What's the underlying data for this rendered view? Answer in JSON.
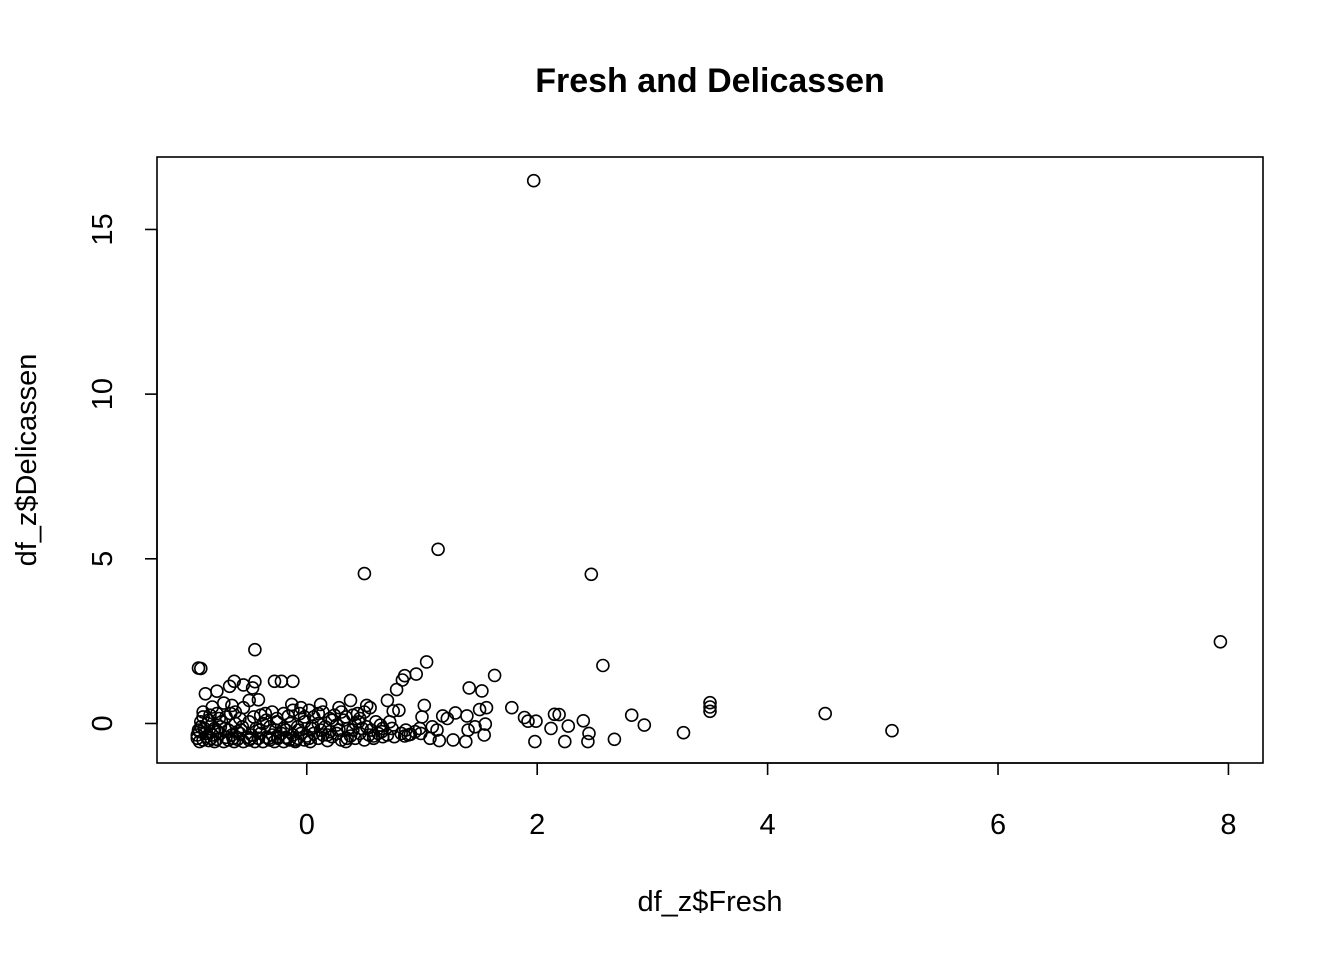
{
  "chart_data": {
    "type": "scatter",
    "title": "Fresh and Delicassen",
    "xlabel": "df_z$Fresh",
    "ylabel": "df_z$Delicassen",
    "xlim": [
      -1.3,
      8.3
    ],
    "ylim": [
      -1.2,
      17.2
    ],
    "xticks": [
      0,
      2,
      4,
      6,
      8
    ],
    "yticks": [
      0,
      5,
      10,
      15
    ],
    "grid": false,
    "legend": "none",
    "points": [
      [
        1.97,
        16.48
      ],
      [
        1.14,
        5.29
      ],
      [
        0.5,
        4.55
      ],
      [
        2.47,
        4.53
      ],
      [
        7.93,
        2.48
      ],
      [
        -0.45,
        2.24
      ],
      [
        -0.94,
        1.68
      ],
      [
        -0.92,
        1.67
      ],
      [
        1.04,
        1.87
      ],
      [
        2.57,
        1.76
      ],
      [
        1.63,
        1.46
      ],
      [
        0.85,
        1.45
      ],
      [
        0.83,
        1.32
      ],
      [
        -0.63,
        1.28
      ],
      [
        -0.45,
        1.27
      ],
      [
        -0.28,
        1.28
      ],
      [
        -0.22,
        1.28
      ],
      [
        -0.12,
        1.28
      ],
      [
        -0.67,
        1.13
      ],
      [
        -0.55,
        1.17
      ],
      [
        -0.47,
        1.08
      ],
      [
        -0.78,
        0.98
      ],
      [
        -0.88,
        0.9
      ],
      [
        0.78,
        1.03
      ],
      [
        0.95,
        1.5
      ],
      [
        1.41,
        1.08
      ],
      [
        1.52,
        0.99
      ],
      [
        3.5,
        0.63
      ],
      [
        3.5,
        0.5
      ],
      [
        3.5,
        0.37
      ],
      [
        4.5,
        0.3
      ],
      [
        5.08,
        -0.22
      ],
      [
        3.27,
        -0.28
      ],
      [
        2.93,
        -0.05
      ],
      [
        2.82,
        0.25
      ],
      [
        2.67,
        -0.48
      ],
      [
        2.45,
        -0.3
      ],
      [
        2.44,
        -0.55
      ],
      [
        2.4,
        0.08
      ],
      [
        2.27,
        -0.08
      ],
      [
        2.24,
        -0.55
      ],
      [
        2.19,
        0.27
      ],
      [
        2.15,
        0.28
      ],
      [
        2.12,
        -0.15
      ],
      [
        1.99,
        0.07
      ],
      [
        1.98,
        -0.55
      ],
      [
        1.92,
        0.07
      ],
      [
        1.89,
        0.18
      ],
      [
        1.78,
        0.48
      ],
      [
        1.56,
        0.48
      ],
      [
        1.55,
        -0.02
      ],
      [
        1.54,
        -0.35
      ],
      [
        1.5,
        0.42
      ],
      [
        1.46,
        -0.1
      ],
      [
        1.4,
        -0.2
      ],
      [
        1.39,
        0.23
      ],
      [
        1.38,
        -0.55
      ],
      [
        1.29,
        0.32
      ],
      [
        1.27,
        -0.5
      ],
      [
        1.22,
        0.15
      ],
      [
        1.18,
        0.23
      ],
      [
        1.15,
        -0.52
      ],
      [
        1.13,
        -0.2
      ],
      [
        1.09,
        -0.1
      ],
      [
        1.07,
        -0.45
      ],
      [
        1.02,
        0.55
      ],
      [
        1.0,
        0.2
      ],
      [
        0.99,
        -0.3
      ],
      [
        0.9,
        -0.33
      ],
      [
        0.85,
        -0.38
      ],
      [
        0.8,
        0.4
      ],
      [
        0.75,
        0.38
      ],
      [
        0.7,
        0.7
      ],
      [
        0.72,
        0.05
      ],
      [
        0.65,
        -0.25
      ],
      [
        0.58,
        -0.38
      ],
      [
        0.55,
        0.48
      ],
      [
        0.52,
        0.55
      ],
      [
        0.5,
        0.35
      ],
      [
        0.45,
        0.05
      ],
      [
        0.4,
        0.25
      ],
      [
        0.38,
        0.7
      ],
      [
        0.35,
        -0.45
      ],
      [
        0.3,
        0.35
      ],
      [
        0.28,
        0.48
      ],
      [
        0.22,
        0.1
      ],
      [
        0.18,
        -0.35
      ],
      [
        0.12,
        0.58
      ],
      [
        0.1,
        0.3
      ],
      [
        0.05,
        -0.08
      ],
      [
        0.02,
        0.4
      ],
      [
        -0.02,
        0.2
      ],
      [
        -0.05,
        0.48
      ],
      [
        -0.1,
        -0.5
      ],
      [
        -0.12,
        0.4
      ],
      [
        -0.13,
        0.58
      ],
      [
        -0.18,
        -0.2
      ],
      [
        -0.2,
        0.3
      ],
      [
        -0.25,
        -0.4
      ],
      [
        -0.3,
        0.35
      ],
      [
        -0.35,
        0.1
      ],
      [
        -0.4,
        0.25
      ],
      [
        -0.42,
        0.72
      ],
      [
        -0.5,
        0.7
      ],
      [
        -0.55,
        0.48
      ],
      [
        -0.6,
        -0.25
      ],
      [
        -0.62,
        0.35
      ],
      [
        -0.65,
        0.55
      ],
      [
        -0.7,
        0.2
      ],
      [
        -0.72,
        0.62
      ],
      [
        -0.75,
        -0.1
      ],
      [
        -0.78,
        0.3
      ],
      [
        -0.82,
        0.5
      ],
      [
        -0.85,
        0.1
      ],
      [
        -0.88,
        -0.3
      ],
      [
        -0.9,
        0.35
      ],
      [
        -0.92,
        0.05
      ],
      [
        -0.94,
        -0.2
      ],
      [
        -0.95,
        -0.45
      ],
      [
        -0.93,
        -0.55
      ],
      [
        -0.9,
        -0.5
      ],
      [
        -0.87,
        -0.4
      ],
      [
        -0.85,
        -0.52
      ],
      [
        -0.82,
        -0.35
      ],
      [
        -0.8,
        -0.55
      ],
      [
        -0.78,
        -0.48
      ],
      [
        -0.75,
        -0.3
      ],
      [
        -0.72,
        -0.55
      ],
      [
        -0.7,
        -0.42
      ],
      [
        -0.68,
        -0.5
      ],
      [
        -0.65,
        -0.35
      ],
      [
        -0.63,
        -0.55
      ],
      [
        -0.6,
        -0.48
      ],
      [
        -0.58,
        -0.3
      ],
      [
        -0.55,
        -0.55
      ],
      [
        -0.52,
        -0.42
      ],
      [
        -0.5,
        -0.5
      ],
      [
        -0.48,
        -0.35
      ],
      [
        -0.45,
        -0.55
      ],
      [
        -0.42,
        -0.45
      ],
      [
        -0.4,
        -0.3
      ],
      [
        -0.38,
        -0.55
      ],
      [
        -0.35,
        -0.42
      ],
      [
        -0.32,
        -0.5
      ],
      [
        -0.3,
        -0.35
      ],
      [
        -0.28,
        -0.55
      ],
      [
        -0.25,
        -0.45
      ],
      [
        -0.22,
        -0.3
      ],
      [
        -0.2,
        -0.55
      ],
      [
        -0.18,
        -0.42
      ],
      [
        -0.15,
        -0.5
      ],
      [
        -0.12,
        -0.35
      ],
      [
        -0.1,
        -0.55
      ],
      [
        -0.08,
        -0.45
      ],
      [
        -0.05,
        -0.3
      ],
      [
        -0.02,
        -0.5
      ],
      [
        0.0,
        -0.38
      ],
      [
        0.03,
        -0.55
      ],
      [
        0.06,
        -0.3
      ],
      [
        0.1,
        -0.45
      ],
      [
        0.14,
        -0.35
      ],
      [
        0.18,
        -0.52
      ],
      [
        0.22,
        -0.4
      ],
      [
        0.26,
        -0.3
      ],
      [
        0.3,
        -0.5
      ],
      [
        0.34,
        -0.55
      ],
      [
        0.38,
        -0.38
      ],
      [
        0.42,
        -0.45
      ],
      [
        0.46,
        -0.3
      ],
      [
        0.5,
        -0.5
      ],
      [
        0.54,
        -0.35
      ],
      [
        0.58,
        -0.45
      ],
      [
        0.62,
        -0.3
      ],
      [
        0.66,
        -0.4
      ],
      [
        0.7,
        -0.35
      ],
      [
        0.76,
        -0.4
      ],
      [
        0.82,
        -0.3
      ],
      [
        0.88,
        -0.35
      ],
      [
        0.94,
        -0.25
      ],
      [
        -0.92,
        -0.1
      ],
      [
        -0.86,
        0.0
      ],
      [
        -0.8,
        -0.15
      ],
      [
        -0.74,
        0.05
      ],
      [
        -0.68,
        -0.2
      ],
      [
        -0.62,
        0.0
      ],
      [
        -0.56,
        -0.1
      ],
      [
        -0.5,
        0.05
      ],
      [
        -0.44,
        -0.15
      ],
      [
        -0.38,
        0.0
      ],
      [
        -0.32,
        -0.1
      ],
      [
        -0.26,
        0.05
      ],
      [
        -0.2,
        -0.15
      ],
      [
        -0.14,
        0.0
      ],
      [
        -0.08,
        -0.1
      ],
      [
        -0.02,
        0.05
      ],
      [
        0.04,
        -0.15
      ],
      [
        0.1,
        0.0
      ],
      [
        0.16,
        -0.1
      ],
      [
        0.2,
        0.15
      ],
      [
        0.26,
        -0.05
      ],
      [
        0.32,
        0.1
      ],
      [
        0.36,
        -0.15
      ],
      [
        0.42,
        0.0
      ],
      [
        0.46,
        0.15
      ],
      [
        0.52,
        -0.1
      ],
      [
        0.6,
        0.05
      ],
      [
        0.66,
        -0.15
      ],
      [
        -0.9,
        0.2
      ],
      [
        -0.84,
        0.25
      ],
      [
        -0.76,
        0.15
      ],
      [
        -0.66,
        0.3
      ],
      [
        -0.58,
        0.15
      ],
      [
        -0.46,
        0.2
      ],
      [
        -0.36,
        0.3
      ],
      [
        -0.26,
        0.15
      ],
      [
        -0.16,
        0.22
      ],
      [
        -0.06,
        0.3
      ],
      [
        0.06,
        0.2
      ],
      [
        0.14,
        0.35
      ],
      [
        0.24,
        0.25
      ],
      [
        0.34,
        0.2
      ],
      [
        0.44,
        0.3
      ],
      [
        -0.95,
        -0.35
      ],
      [
        -0.93,
        -0.25
      ],
      [
        -0.89,
        -0.15
      ],
      [
        -0.83,
        -0.45
      ],
      [
        -0.77,
        -0.25
      ],
      [
        -0.71,
        -0.15
      ],
      [
        -0.64,
        -0.45
      ],
      [
        -0.57,
        -0.2
      ],
      [
        -0.49,
        -0.45
      ],
      [
        -0.41,
        -0.2
      ],
      [
        -0.33,
        -0.45
      ],
      [
        -0.27,
        -0.2
      ],
      [
        -0.17,
        -0.45
      ],
      [
        -0.07,
        -0.2
      ],
      [
        0.02,
        -0.45
      ],
      [
        0.12,
        -0.2
      ],
      [
        0.2,
        -0.25
      ],
      [
        0.28,
        -0.2
      ],
      [
        0.4,
        -0.2
      ],
      [
        0.48,
        -0.15
      ],
      [
        0.56,
        -0.2
      ],
      [
        0.64,
        -0.05
      ],
      [
        0.74,
        -0.15
      ],
      [
        0.86,
        -0.2
      ],
      [
        0.98,
        -0.15
      ]
    ]
  }
}
